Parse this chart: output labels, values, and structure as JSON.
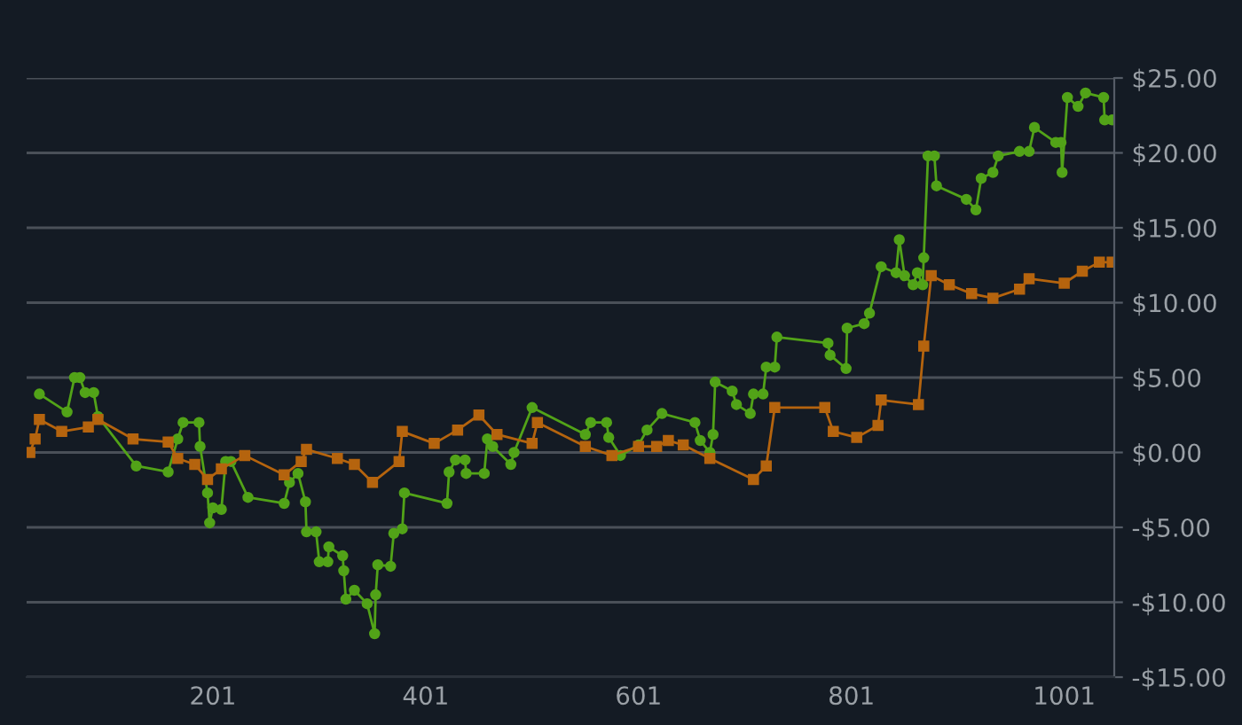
{
  "chart_data": {
    "type": "line",
    "line_style": "solid",
    "grid": "y",
    "legend": false,
    "xlim": [
      26,
      1048
    ],
    "xticks": [
      201,
      401,
      601,
      801,
      1001
    ],
    "ylim": [
      -15,
      25
    ],
    "yticks": [
      {
        "value": -15,
        "label": "-$15.00"
      },
      {
        "value": -10,
        "label": "-$10.00"
      },
      {
        "value": -5,
        "label": "-$5.00"
      },
      {
        "value": 0,
        "label": "$0.00"
      },
      {
        "value": 5,
        "label": "$5.00"
      },
      {
        "value": 10,
        "label": "$10.00"
      },
      {
        "value": 15,
        "label": "$15.00"
      },
      {
        "value": 20,
        "label": "$20.00"
      },
      {
        "value": 25,
        "label": "$25.00"
      }
    ],
    "series": [
      {
        "color": "#52a318",
        "marker": "circle",
        "x": [
          38,
          64,
          71,
          76,
          81,
          89,
          93,
          129,
          159,
          168,
          173,
          188,
          189,
          196,
          198,
          201,
          209,
          213,
          218,
          234,
          268,
          273,
          281,
          288,
          289,
          298,
          301,
          309,
          310,
          323,
          324,
          326,
          334,
          346,
          353,
          354,
          356,
          368,
          371,
          379,
          381,
          421,
          423,
          429,
          438,
          439,
          456,
          459,
          464,
          481,
          484,
          501,
          551,
          556,
          571,
          573,
          584,
          601,
          609,
          623,
          654,
          659,
          668,
          671,
          673,
          689,
          693,
          706,
          709,
          718,
          721,
          729,
          731,
          779,
          781,
          796,
          797,
          813,
          818,
          829,
          843,
          846,
          851,
          859,
          863,
          868,
          869,
          873,
          879,
          881,
          909,
          918,
          923,
          934,
          939,
          959,
          968,
          973,
          993,
          998,
          999,
          1004,
          1014,
          1021,
          1038,
          1039,
          1046
        ],
        "values": [
          3.9,
          2.7,
          5.0,
          5.0,
          4.0,
          4.0,
          2.4,
          -0.9,
          -1.3,
          0.9,
          2.0,
          2.0,
          0.4,
          -2.7,
          -4.7,
          -3.7,
          -3.8,
          -0.6,
          -0.6,
          -3.0,
          -3.4,
          -2.0,
          -1.4,
          -3.3,
          -5.3,
          -5.3,
          -7.3,
          -7.3,
          -6.3,
          -6.9,
          -7.9,
          -9.8,
          -9.2,
          -10.1,
          -12.1,
          -9.5,
          -7.5,
          -7.6,
          -5.4,
          -5.1,
          -2.7,
          -3.4,
          -1.3,
          -0.5,
          -0.5,
          -1.4,
          -1.4,
          0.9,
          0.4,
          -0.8,
          0.0,
          3.0,
          1.2,
          2.0,
          2.0,
          1.0,
          -0.2,
          0.5,
          1.5,
          2.6,
          2.0,
          0.8,
          0.0,
          1.2,
          4.7,
          4.1,
          3.2,
          2.6,
          3.9,
          3.9,
          5.7,
          5.7,
          7.7,
          7.3,
          6.5,
          5.6,
          8.3,
          8.6,
          9.3,
          12.4,
          12.0,
          14.2,
          11.8,
          11.2,
          12.0,
          11.2,
          13.0,
          19.8,
          19.8,
          17.8,
          16.9,
          16.2,
          18.3,
          18.7,
          19.8,
          20.1,
          20.1,
          21.7,
          20.7,
          20.7,
          18.7,
          23.7,
          23.1,
          24.0,
          23.7,
          22.2,
          22.2
        ]
      },
      {
        "color": "#b5640e",
        "marker": "square",
        "x": [
          29,
          34,
          38,
          59,
          84,
          93,
          126,
          159,
          168,
          184,
          196,
          209,
          231,
          268,
          284,
          289,
          318,
          334,
          351,
          376,
          379,
          409,
          431,
          451,
          468,
          501,
          506,
          551,
          576,
          601,
          618,
          629,
          643,
          668,
          709,
          721,
          729,
          776,
          784,
          806,
          826,
          829,
          864,
          869,
          876,
          893,
          914,
          934,
          959,
          968,
          1001,
          1018,
          1034,
          1046
        ],
        "values": [
          0.0,
          0.9,
          2.2,
          1.4,
          1.7,
          2.2,
          0.9,
          0.7,
          -0.4,
          -0.8,
          -1.8,
          -1.1,
          -0.2,
          -1.5,
          -0.6,
          0.2,
          -0.4,
          -0.8,
          -2.0,
          -0.6,
          1.4,
          0.6,
          1.5,
          2.5,
          1.2,
          0.6,
          2.0,
          0.4,
          -0.2,
          0.4,
          0.4,
          0.8,
          0.5,
          -0.4,
          -1.8,
          -0.9,
          3.0,
          3.0,
          1.4,
          1.0,
          1.8,
          3.5,
          3.2,
          7.1,
          11.8,
          11.2,
          10.6,
          10.3,
          10.9,
          11.6,
          11.3,
          12.1,
          12.7,
          12.7
        ]
      }
    ]
  }
}
